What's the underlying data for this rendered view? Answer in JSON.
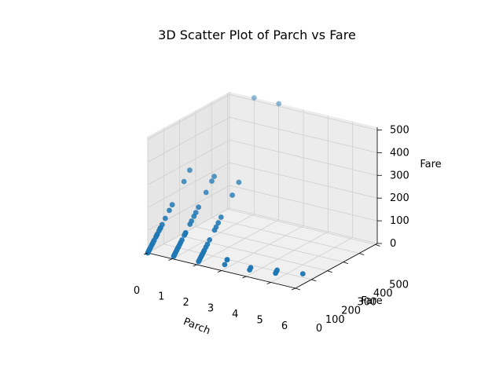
{
  "chart_data": {
    "type": "scatter",
    "title": "3D Scatter Plot of Parch vs Fare",
    "xlabel": "Parch",
    "ylabel": "Fare",
    "zlabel": "Fare",
    "xlim": [
      0,
      6
    ],
    "ylim": [
      0,
      512
    ],
    "zlim": [
      0,
      512
    ],
    "xticks": [
      "0",
      "1",
      "2",
      "3",
      "4",
      "5",
      "6"
    ],
    "yticks": [
      "0",
      "100",
      "200",
      "300",
      "400",
      "500"
    ],
    "zticks": [
      "0",
      "100",
      "200",
      "300",
      "400",
      "500"
    ],
    "grid": true,
    "color": "#1f77b4",
    "pane_color": "#f2f2f2",
    "series": [
      {
        "points": [
          [
            0,
            0
          ],
          [
            0,
            5
          ],
          [
            0,
            7
          ],
          [
            0,
            8
          ],
          [
            0,
            10
          ],
          [
            0,
            13
          ],
          [
            0,
            15
          ],
          [
            0,
            20
          ],
          [
            0,
            26
          ],
          [
            0,
            30
          ],
          [
            0,
            35
          ],
          [
            0,
            40
          ],
          [
            0,
            50
          ],
          [
            0,
            55
          ],
          [
            0,
            60
          ],
          [
            0,
            70
          ],
          [
            0,
            77
          ],
          [
            0,
            80
          ],
          [
            0,
            90
          ],
          [
            0,
            110
          ],
          [
            0,
            135
          ],
          [
            0,
            153
          ],
          [
            0,
            227
          ],
          [
            0,
            263
          ],
          [
            1,
            8
          ],
          [
            1,
            12
          ],
          [
            1,
            15
          ],
          [
            1,
            20
          ],
          [
            1,
            26
          ],
          [
            1,
            30
          ],
          [
            1,
            36
          ],
          [
            1,
            40
          ],
          [
            1,
            46
          ],
          [
            1,
            52
          ],
          [
            1,
            60
          ],
          [
            1,
            75
          ],
          [
            1,
            80
          ],
          [
            1,
            83
          ],
          [
            1,
            110
          ],
          [
            1,
            120
          ],
          [
            1,
            135
          ],
          [
            1,
            147
          ],
          [
            1,
            164
          ],
          [
            1,
            211
          ],
          [
            1,
            247
          ],
          [
            1,
            262
          ],
          [
            1,
            512
          ],
          [
            2,
            10
          ],
          [
            2,
            15
          ],
          [
            2,
            20
          ],
          [
            2,
            26
          ],
          [
            2,
            31
          ],
          [
            2,
            34
          ],
          [
            2,
            40
          ],
          [
            2,
            46
          ],
          [
            2,
            56
          ],
          [
            2,
            65
          ],
          [
            2,
            79
          ],
          [
            2,
            110
          ],
          [
            2,
            120
          ],
          [
            2,
            133
          ],
          [
            2,
            151
          ],
          [
            2,
            221
          ],
          [
            2,
            262
          ],
          [
            2,
            512
          ],
          [
            3,
            19
          ],
          [
            3,
            34
          ],
          [
            3,
            35
          ],
          [
            4,
            21
          ],
          [
            4,
            28
          ],
          [
            5,
            29
          ],
          [
            5,
            34
          ],
          [
            5,
            39
          ],
          [
            6,
            46
          ]
        ]
      }
    ]
  }
}
